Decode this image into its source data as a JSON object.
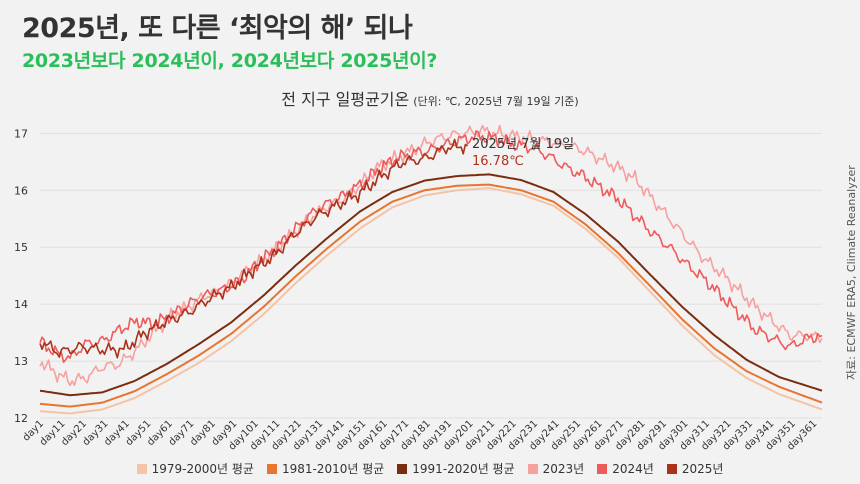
{
  "header": {
    "title": "2025년, 또 다른 ‘최악의 해’ 되나",
    "subtitle": "2023년보다 2024년이, 2024년보다 2025년이?"
  },
  "chart_title": {
    "main": "전 지구 일평균기온",
    "unit": "(단위: ℃, 2025년 7월 19일 기준)"
  },
  "source": "자료: ECMWF ERA5, Climate Reanalyzer",
  "annotation": {
    "date": "2025년 7월 19일",
    "value": "16.78℃"
  },
  "chart_data": {
    "type": "line",
    "ylim": [
      12,
      17.2
    ],
    "yticks": [
      12,
      13,
      14,
      15,
      16,
      17
    ],
    "xlabels": [
      "day1",
      "day11",
      "day21",
      "day31",
      "day41",
      "day51",
      "day61",
      "day71",
      "day81",
      "day91",
      "day101",
      "day111",
      "day121",
      "day131",
      "day141",
      "day151",
      "day161",
      "day171",
      "day181",
      "day191",
      "day201",
      "day211",
      "day221",
      "day231",
      "day241",
      "day251",
      "day261",
      "day271",
      "day281",
      "day291",
      "day301",
      "day311",
      "day321",
      "day331",
      "day341",
      "day351",
      "day361"
    ],
    "series": [
      {
        "name": "1979-2000년 평균",
        "color": "#f5c3a6",
        "width": 2,
        "day": [
          1,
          15,
          30,
          45,
          60,
          75,
          90,
          105,
          120,
          135,
          150,
          165,
          180,
          195,
          210,
          225,
          240,
          255,
          270,
          285,
          300,
          315,
          330,
          345,
          365
        ],
        "values": [
          12.12,
          12.08,
          12.15,
          12.35,
          12.65,
          12.97,
          13.35,
          13.82,
          14.37,
          14.87,
          15.33,
          15.7,
          15.91,
          16.0,
          16.04,
          15.93,
          15.73,
          15.32,
          14.82,
          14.22,
          13.62,
          13.1,
          12.7,
          12.42,
          12.15
        ]
      },
      {
        "name": "1981-2010년 평균",
        "color": "#e8742e",
        "width": 2,
        "day": [
          1,
          15,
          30,
          45,
          60,
          75,
          90,
          105,
          120,
          135,
          150,
          165,
          180,
          195,
          210,
          225,
          240,
          255,
          270,
          285,
          300,
          315,
          330,
          345,
          365
        ],
        "values": [
          12.25,
          12.2,
          12.27,
          12.47,
          12.77,
          13.1,
          13.48,
          13.95,
          14.49,
          14.99,
          15.45,
          15.8,
          16.0,
          16.08,
          16.1,
          16.0,
          15.8,
          15.4,
          14.9,
          14.32,
          13.73,
          13.22,
          12.82,
          12.55,
          12.27
        ]
      },
      {
        "name": "1991-2020년 평균",
        "color": "#7a2d0e",
        "width": 2,
        "day": [
          1,
          15,
          30,
          45,
          60,
          75,
          90,
          105,
          120,
          135,
          150,
          165,
          180,
          195,
          210,
          225,
          240,
          255,
          270,
          285,
          300,
          315,
          330,
          345,
          365
        ],
        "values": [
          12.48,
          12.4,
          12.45,
          12.65,
          12.95,
          13.3,
          13.68,
          14.15,
          14.68,
          15.17,
          15.63,
          15.97,
          16.17,
          16.25,
          16.28,
          16.18,
          15.97,
          15.58,
          15.1,
          14.52,
          13.95,
          13.45,
          13.02,
          12.72,
          12.48
        ]
      },
      {
        "name": "2023년",
        "color": "#f7a0a0",
        "width": 1.6,
        "day": [
          1,
          8,
          15,
          22,
          30,
          38,
          46,
          54,
          62,
          70,
          78,
          86,
          94,
          102,
          110,
          118,
          126,
          134,
          142,
          150,
          158,
          166,
          174,
          182,
          190,
          198,
          206,
          214,
          222,
          230,
          238,
          246,
          254,
          262,
          270,
          278,
          286,
          294,
          302,
          310,
          318,
          326,
          334,
          342,
          350,
          358,
          365
        ],
        "values": [
          13.0,
          12.8,
          12.65,
          12.7,
          12.9,
          12.95,
          13.2,
          13.5,
          13.8,
          13.95,
          14.15,
          14.25,
          14.5,
          14.7,
          14.95,
          15.2,
          15.5,
          15.7,
          15.85,
          16.1,
          16.4,
          16.55,
          16.7,
          16.85,
          16.95,
          17.0,
          17.05,
          17.0,
          16.95,
          16.9,
          16.85,
          16.8,
          16.7,
          16.55,
          16.4,
          16.2,
          15.85,
          15.5,
          15.15,
          14.8,
          14.55,
          14.25,
          13.95,
          13.7,
          13.45,
          13.45,
          13.4
        ]
      },
      {
        "name": "2024년",
        "color": "#ef5a5a",
        "width": 1.6,
        "day": [
          1,
          8,
          15,
          22,
          30,
          38,
          46,
          54,
          62,
          70,
          78,
          86,
          94,
          102,
          110,
          118,
          126,
          134,
          142,
          150,
          158,
          166,
          174,
          182,
          190,
          198,
          206,
          214,
          222,
          230,
          238,
          246,
          254,
          262,
          270,
          278,
          286,
          294,
          302,
          310,
          318,
          326,
          334,
          342,
          350,
          358,
          365
        ],
        "values": [
          13.35,
          13.15,
          13.05,
          13.3,
          13.35,
          13.55,
          13.7,
          13.65,
          13.8,
          14.0,
          14.15,
          14.25,
          14.4,
          14.7,
          14.95,
          15.25,
          15.55,
          15.75,
          15.9,
          16.1,
          16.35,
          16.55,
          16.65,
          16.7,
          16.8,
          16.9,
          16.95,
          16.9,
          16.8,
          16.75,
          16.6,
          16.4,
          16.25,
          16.05,
          15.85,
          15.55,
          15.25,
          15.0,
          14.7,
          14.45,
          14.15,
          13.85,
          13.55,
          13.4,
          13.25,
          13.4,
          13.45
        ]
      },
      {
        "name": "2025년",
        "color": "#a8321a",
        "width": 1.6,
        "day": [
          1,
          10,
          20,
          30,
          40,
          50,
          60,
          70,
          80,
          90,
          100,
          110,
          120,
          130,
          140,
          150,
          160,
          170,
          180,
          190,
          200
        ],
        "values": [
          13.35,
          13.15,
          13.25,
          13.2,
          13.2,
          13.5,
          13.7,
          13.85,
          14.1,
          14.3,
          14.6,
          14.85,
          15.25,
          15.55,
          15.75,
          15.95,
          16.25,
          16.5,
          16.55,
          16.75,
          16.78
        ]
      }
    ]
  }
}
